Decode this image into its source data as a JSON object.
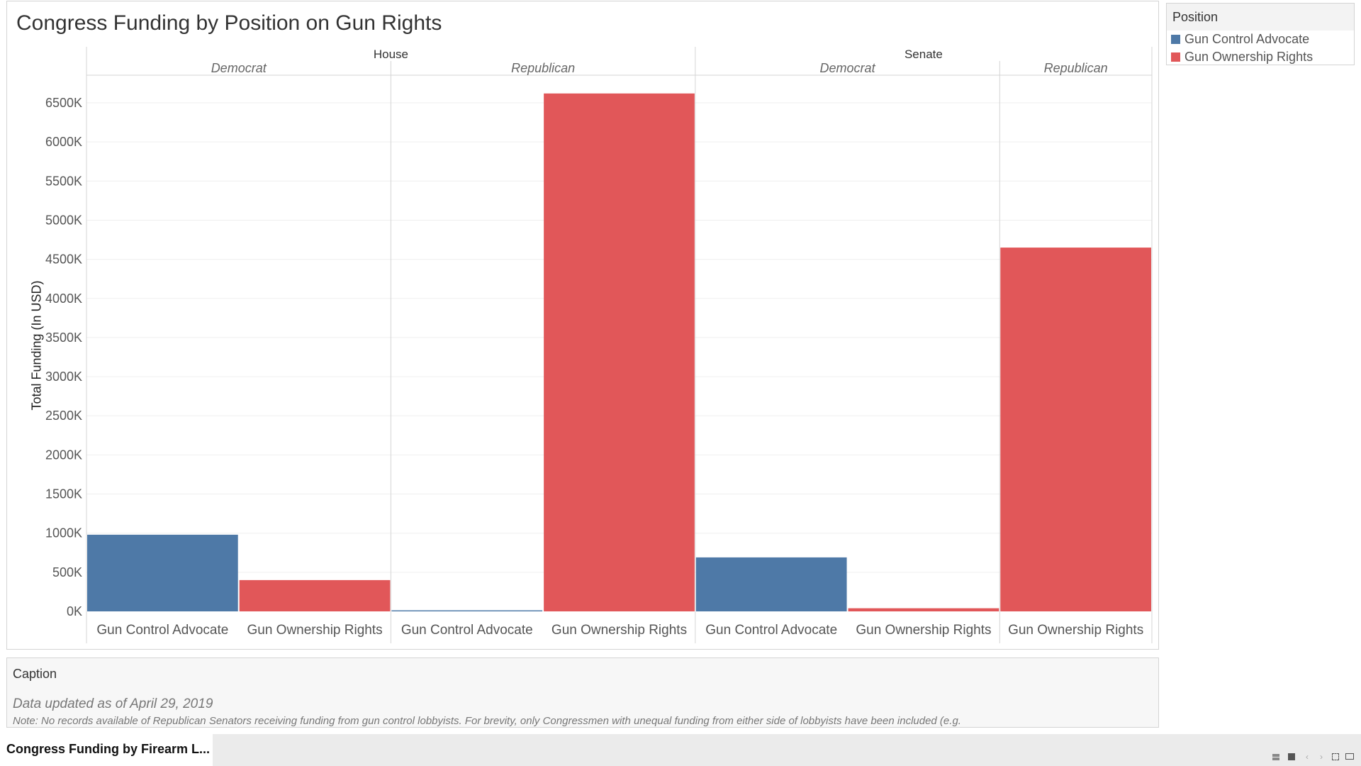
{
  "title": "Congress Funding by Position on Gun Rights",
  "chart_data": {
    "type": "bar",
    "title": "Congress Funding by Position on Gun Rights",
    "ylabel": "Total Funding (In USD)",
    "ylim": [
      -80000,
      6900000
    ],
    "yticks": [
      0,
      500000,
      1000000,
      1500000,
      2000000,
      2500000,
      3000000,
      3500000,
      4000000,
      4500000,
      5000000,
      5500000,
      6000000,
      6500000
    ],
    "ytick_labels": [
      "0K",
      "500K",
      "1000K",
      "1500K",
      "2000K",
      "2500K",
      "3000K",
      "3500K",
      "4000K",
      "4500K",
      "5000K",
      "5500K",
      "6000K",
      "6500K"
    ],
    "grid": true,
    "colors": {
      "Gun Control Advocate": "#4e79a7",
      "Gun Ownership Rights": "#e15759"
    },
    "chambers": [
      {
        "name": "House",
        "parties": [
          {
            "name": "Democrat",
            "bars": [
              {
                "category": "Gun Control Advocate",
                "value": 980000
              },
              {
                "category": "Gun Ownership Rights",
                "value": 400000
              }
            ]
          },
          {
            "name": "Republican",
            "bars": [
              {
                "category": "Gun Control Advocate",
                "value": 12000
              },
              {
                "category": "Gun Ownership Rights",
                "value": 6620000
              }
            ]
          }
        ]
      },
      {
        "name": "Senate",
        "parties": [
          {
            "name": "Democrat",
            "bars": [
              {
                "category": "Gun Control Advocate",
                "value": 690000
              },
              {
                "category": "Gun Ownership Rights",
                "value": 40000
              }
            ]
          },
          {
            "name": "Republican",
            "bars": [
              {
                "category": "Gun Ownership Rights",
                "value": 4650000
              }
            ]
          }
        ]
      }
    ]
  },
  "legend": {
    "title": "Position",
    "items": [
      {
        "label": "Gun Control Advocate",
        "color": "#4e79a7"
      },
      {
        "label": "Gun Ownership Rights",
        "color": "#e15759"
      }
    ]
  },
  "caption": {
    "title": "Caption",
    "updated": "Data updated as of April 29, 2019",
    "note": "Note: No records available of Republican Senators receiving funding from gun control lobbyists. For brevity, only Congressmen with unequal funding from either side of lobbyists have been included (e.g."
  },
  "tab": {
    "label": "Congress Funding by Firearm L..."
  }
}
